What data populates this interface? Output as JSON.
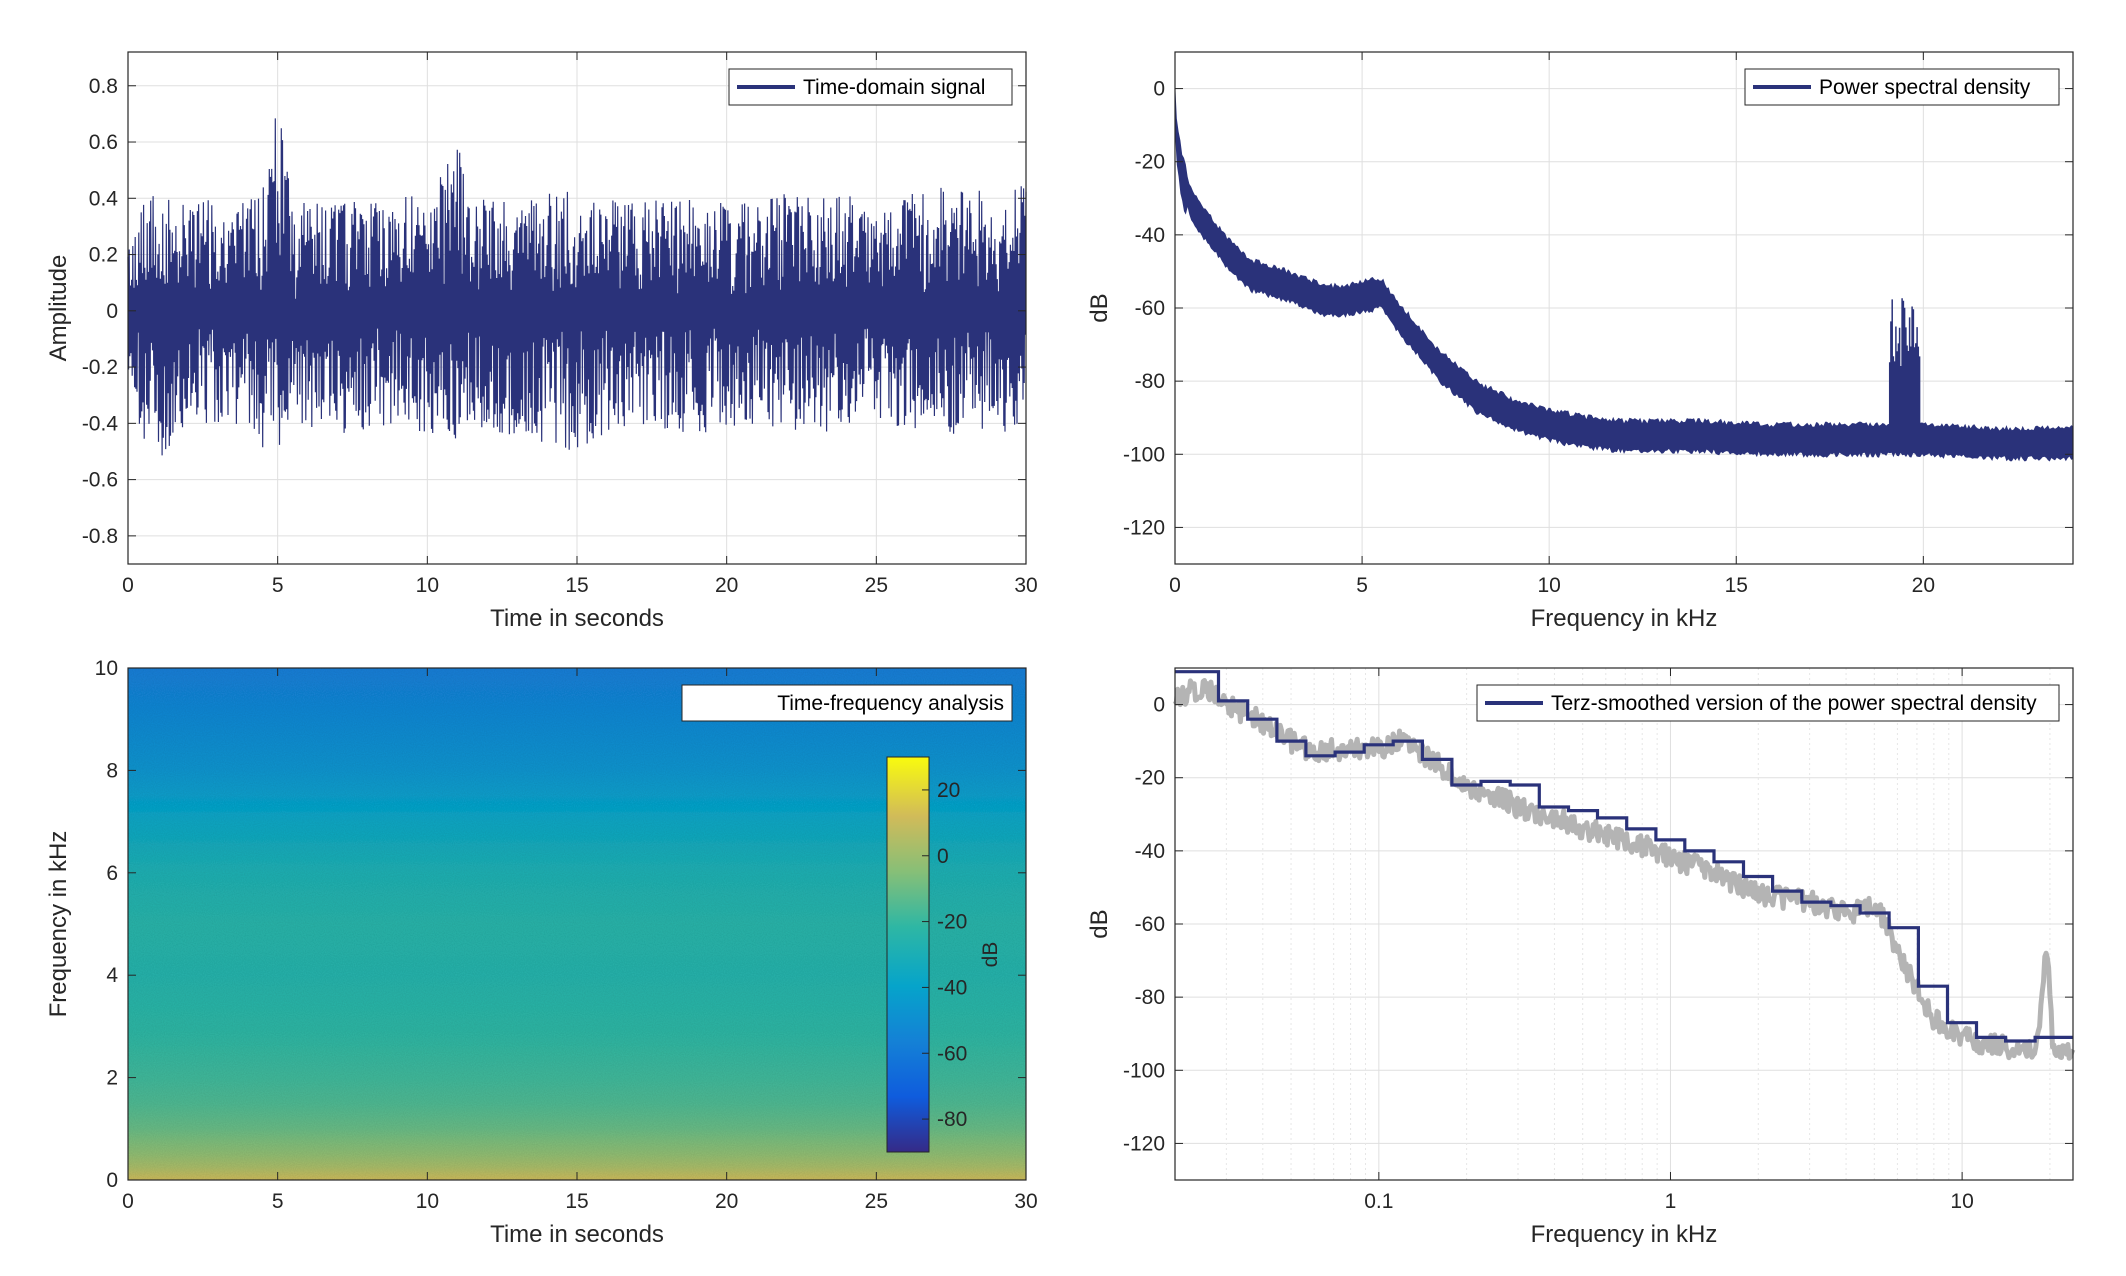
{
  "colors": {
    "signal": "#2a327a",
    "raw_psd": "#b4b4b4",
    "axes": "#262626"
  },
  "chart_data": [
    {
      "id": "time-domain",
      "type": "line",
      "xlabel": "Time in seconds",
      "ylabel": "Amplitude",
      "legend": "Time-domain signal",
      "legend_position": "top-right",
      "grid": true,
      "xlim": [
        0,
        30
      ],
      "ylim": [
        -0.9,
        0.92
      ],
      "xticks": [
        0,
        5,
        10,
        15,
        20,
        25,
        30
      ],
      "yticks": [
        -0.8,
        -0.6,
        -0.4,
        -0.2,
        0,
        0.2,
        0.4,
        0.6,
        0.8
      ],
      "envelope": {
        "t": [
          0,
          0.5,
          1,
          2,
          3,
          4,
          4.5,
          5,
          5.2,
          5.6,
          6,
          7,
          8,
          9,
          10,
          10.8,
          11,
          11.3,
          12,
          13,
          14,
          15,
          16,
          17,
          18,
          19,
          20,
          21,
          22,
          23,
          24,
          25,
          26,
          27,
          28,
          29,
          30
        ],
        "upper": [
          0.25,
          0.4,
          0.42,
          0.38,
          0.4,
          0.38,
          0.45,
          0.75,
          0.6,
          0.3,
          0.42,
          0.4,
          0.38,
          0.4,
          0.42,
          0.55,
          0.72,
          0.4,
          0.4,
          0.38,
          0.42,
          0.44,
          0.4,
          0.38,
          0.4,
          0.42,
          0.4,
          0.38,
          0.42,
          0.4,
          0.42,
          0.4,
          0.42,
          0.44,
          0.42,
          0.45,
          0.48
        ],
        "lower": [
          -0.25,
          -0.45,
          -0.58,
          -0.4,
          -0.42,
          -0.4,
          -0.5,
          -0.5,
          -0.45,
          -0.4,
          -0.42,
          -0.45,
          -0.42,
          -0.4,
          -0.45,
          -0.5,
          -0.62,
          -0.4,
          -0.42,
          -0.45,
          -0.48,
          -0.52,
          -0.44,
          -0.4,
          -0.42,
          -0.44,
          -0.42,
          -0.4,
          -0.42,
          -0.45,
          -0.42,
          -0.4,
          -0.42,
          -0.42,
          -0.45,
          -0.45,
          -0.4
        ]
      }
    },
    {
      "id": "psd-linear",
      "type": "line",
      "xlabel": "Frequency in kHz",
      "ylabel": "dB",
      "legend": "Power spectral density",
      "legend_position": "top-right",
      "grid": true,
      "xlim": [
        0,
        24
      ],
      "ylim": [
        -130,
        10
      ],
      "xticks": [
        0,
        5,
        10,
        15,
        20
      ],
      "yticks": [
        -120,
        -100,
        -80,
        -60,
        -40,
        -20,
        0
      ],
      "series": {
        "f": [
          0,
          0.05,
          0.2,
          0.5,
          1,
          1.5,
          2,
          3,
          4,
          4.5,
          5,
          5.5,
          6,
          7,
          8,
          9,
          10,
          11,
          12,
          13,
          14,
          15,
          16,
          17,
          18,
          19,
          20,
          21,
          22,
          23,
          24
        ],
        "db": [
          -5,
          -15,
          -25,
          -33,
          -40,
          -46,
          -51,
          -54,
          -58,
          -58,
          -57,
          -56,
          -63,
          -75,
          -84,
          -89,
          -92,
          -94,
          -95,
          -95,
          -95,
          -95.5,
          -96,
          -96,
          -96,
          -96,
          -96,
          -96.5,
          -97,
          -97,
          -97
        ]
      },
      "spike": {
        "f": [
          19.1,
          19.9
        ],
        "db_peak": -57
      }
    },
    {
      "id": "spectrogram",
      "type": "heatmap",
      "xlabel": "Time in seconds",
      "ylabel": "Frequency in kHz",
      "legend": "Time-frequency analysis",
      "legend_position": "top-right",
      "xlim": [
        0,
        30
      ],
      "ylim": [
        0,
        10
      ],
      "xticks": [
        0,
        5,
        10,
        15,
        20,
        25,
        30
      ],
      "yticks": [
        0,
        2,
        4,
        6,
        8,
        10
      ],
      "colorbar": {
        "label": "dB",
        "clim": [
          -90,
          30
        ],
        "ticks": [
          20,
          0,
          -20,
          -40,
          -60,
          -80
        ]
      },
      "level_profile": {
        "f": [
          0,
          0.2,
          0.5,
          1,
          1.5,
          2,
          3,
          4,
          5,
          6,
          7,
          8,
          9,
          10
        ],
        "db": [
          12,
          5,
          -2,
          -10,
          -15,
          -18,
          -22,
          -25,
          -24,
          -28,
          -36,
          -46,
          -52,
          -57
        ]
      }
    },
    {
      "id": "psd-log",
      "type": "line",
      "xlabel": "Frequency in kHz",
      "ylabel": "dB",
      "legend": "Terz-smoothed version of the power spectral density",
      "legend_position": "top-right",
      "grid": true,
      "xscale": "log",
      "xlim": [
        0.02,
        24
      ],
      "ylim": [
        -130,
        10
      ],
      "xticks": [
        0.1,
        1,
        10
      ],
      "xticklabels": [
        "0.1",
        "1",
        "10"
      ],
      "yticks": [
        -120,
        -100,
        -80,
        -60,
        -40,
        -20,
        0
      ],
      "raw": {
        "f": [
          0.02,
          0.025,
          0.03,
          0.04,
          0.05,
          0.06,
          0.08,
          0.1,
          0.12,
          0.15,
          0.2,
          0.25,
          0.3,
          0.4,
          0.5,
          0.7,
          1,
          1.5,
          2,
          3,
          4,
          5,
          5.5,
          6,
          7,
          8,
          9,
          10,
          12,
          15,
          18,
          19.5,
          20.5,
          24
        ],
        "db": [
          2,
          5,
          0,
          -5,
          -10,
          -13,
          -12,
          -12,
          -10,
          -15,
          -22,
          -25,
          -28,
          -31,
          -34,
          -37,
          -42,
          -47,
          -52,
          -54,
          -57,
          -55,
          -60,
          -68,
          -78,
          -86,
          -89,
          -91,
          -93,
          -94,
          -95,
          -65,
          -95,
          -96
        ]
      },
      "terz": {
        "edges": [
          0.02,
          0.0282,
          0.0355,
          0.0447,
          0.0562,
          0.0708,
          0.0891,
          0.112,
          0.141,
          0.178,
          0.224,
          0.282,
          0.355,
          0.447,
          0.562,
          0.708,
          0.891,
          1.12,
          1.41,
          1.78,
          2.24,
          2.82,
          3.55,
          4.47,
          5.62,
          7.08,
          8.91,
          11.2,
          14.1,
          17.8,
          24
        ],
        "db": [
          9,
          1,
          -4,
          -10,
          -14,
          -13,
          -11,
          -10,
          -15,
          -22,
          -21,
          -22,
          -28,
          -29,
          -31,
          -34,
          -37,
          -40,
          -43,
          -47,
          -51,
          -54,
          -55,
          -57,
          -61,
          -77,
          -87,
          -91,
          -92,
          -91
        ]
      }
    }
  ]
}
